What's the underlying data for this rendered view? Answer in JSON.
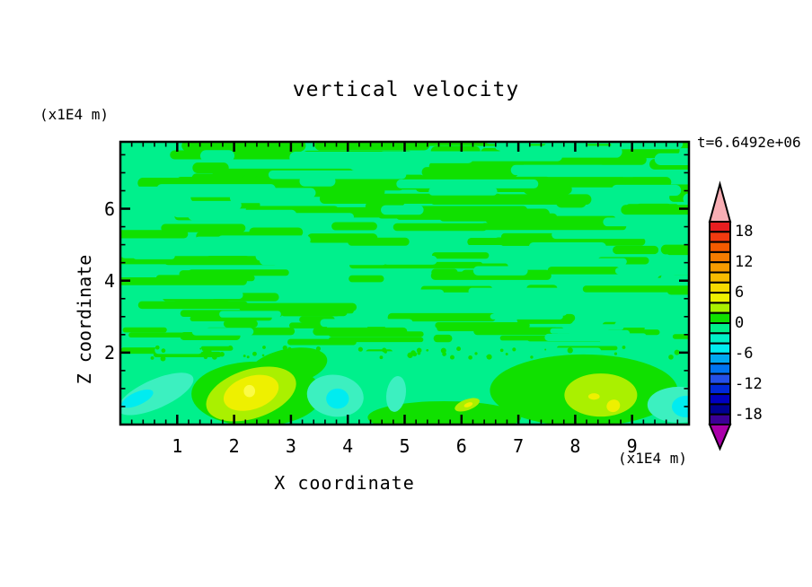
{
  "chart_data": {
    "type": "contour",
    "title": "vertical velocity",
    "time_annotation": "t=6.6492e+06",
    "xlabel": "X coordinate",
    "ylabel": "Z coordinate",
    "x_unit": "(x1E4 m)",
    "y_unit": "(x1E4 m)",
    "xlim": [
      0,
      10.0
    ],
    "ylim": [
      0,
      7.86
    ],
    "x_major_ticks": [
      1,
      2,
      3,
      4,
      5,
      6,
      7,
      8,
      9
    ],
    "x_major_tick_labels": [
      "1",
      "2",
      "3",
      "4",
      "5",
      "6",
      "7",
      "8",
      "9"
    ],
    "x_minor_step": 0.2,
    "y_major_ticks": [
      2,
      4,
      6
    ],
    "y_major_tick_labels": [
      "2",
      "4",
      "6"
    ],
    "y_minor_step": 0.5,
    "grid": false,
    "colorbar": {
      "orientation": "vertical",
      "position": "right",
      "level_min": -20,
      "level_max": 20,
      "level_step": 2,
      "tick_labels": [
        "18",
        "12",
        "6",
        "0",
        "-6",
        "-12",
        "-18"
      ],
      "tick_values": [
        18,
        12,
        6,
        0,
        -6,
        -12,
        -18
      ],
      "colors_top_to_bottom": [
        "#e81e20",
        "#f23a10",
        "#f45a00",
        "#f57c00",
        "#f79c00",
        "#f8bc00",
        "#f5da00",
        "#eef000",
        "#aaf000",
        "#10e000",
        "#00f08c",
        "#00f0c8",
        "#00ecf0",
        "#00a8f0",
        "#0074f0",
        "#2450e8",
        "#0028d8",
        "#0000c0",
        "#000092",
        "#3c0096"
      ],
      "over_arrow_color": "#f8aeb4",
      "under_arrow_color": "#aa00aa"
    },
    "field": {
      "background_color": "#00f08c",
      "background_value_range": [
        -2,
        0
      ],
      "striation_color": "#10e000",
      "striation_value_range": [
        0,
        2
      ],
      "striation_band_z": [
        2.02,
        7.8
      ],
      "striation_seed": 137,
      "striation_count": 150,
      "striation_overlay_count": 75,
      "speckle_z_range": [
        1.82,
        2.16
      ],
      "speckle_count": 55,
      "features": [
        {
          "name": "green-region-left",
          "color": "#10e000",
          "cx": 2.4,
          "cy": 0.85,
          "rx": 1.15,
          "ry": 0.9,
          "rot": 0
        },
        {
          "name": "green-region-left-upper",
          "color": "#10e000",
          "cx": 2.95,
          "cy": 1.6,
          "rx": 0.7,
          "ry": 0.5,
          "rot": -12
        },
        {
          "name": "green-region-bottom-mid",
          "color": "#10e000",
          "cx": 5.7,
          "cy": 0.2,
          "rx": 1.35,
          "ry": 0.45,
          "rot": 0
        },
        {
          "name": "green-region-right",
          "color": "#10e000",
          "cx": 8.15,
          "cy": 0.95,
          "rx": 1.65,
          "ry": 1.0,
          "rot": 0
        },
        {
          "name": "turquoise-patch-left",
          "color": "#3cf0c0",
          "cx": 0.62,
          "cy": 0.85,
          "rx": 0.72,
          "ry": 0.4,
          "rot": -24
        },
        {
          "name": "cyan-patch-left",
          "color": "#00ecf0",
          "cx": 0.3,
          "cy": 0.72,
          "rx": 0.3,
          "ry": 0.18,
          "rot": -24
        },
        {
          "name": "turquoise-patch-mid",
          "color": "#3cf0c0",
          "cx": 3.78,
          "cy": 0.8,
          "rx": 0.5,
          "ry": 0.58,
          "rot": 8
        },
        {
          "name": "cyan-patch-mid",
          "color": "#00ecf0",
          "cx": 3.82,
          "cy": 0.72,
          "rx": 0.2,
          "ry": 0.28,
          "rot": 0
        },
        {
          "name": "turquoise-sliver-mid",
          "color": "#3cf0c0",
          "cx": 4.85,
          "cy": 0.85,
          "rx": 0.17,
          "ry": 0.5,
          "rot": 8
        },
        {
          "name": "updraft-left-chartreuse",
          "color": "#aaf000",
          "cx": 2.3,
          "cy": 0.85,
          "rx": 0.82,
          "ry": 0.68,
          "rot": -18
        },
        {
          "name": "updraft-left-yellow",
          "color": "#eef000",
          "cx": 2.3,
          "cy": 0.88,
          "rx": 0.5,
          "ry": 0.46,
          "rot": -18
        },
        {
          "name": "updraft-left-core",
          "color": "#fbfb46",
          "cx": 2.27,
          "cy": 0.93,
          "rx": 0.1,
          "ry": 0.17,
          "rot": 0
        },
        {
          "name": "updraft-mid-chartreuse",
          "color": "#aaf000",
          "cx": 6.1,
          "cy": 0.55,
          "rx": 0.23,
          "ry": 0.15,
          "rot": -20
        },
        {
          "name": "updraft-mid-yellow",
          "color": "#eef000",
          "cx": 6.12,
          "cy": 0.55,
          "rx": 0.08,
          "ry": 0.06,
          "rot": -20
        },
        {
          "name": "updraft-right-chartreuse",
          "color": "#aaf000",
          "cx": 8.45,
          "cy": 0.82,
          "rx": 0.64,
          "ry": 0.6,
          "rot": 0
        },
        {
          "name": "updraft-right-yellow-1",
          "color": "#eef000",
          "cx": 8.33,
          "cy": 0.78,
          "rx": 0.1,
          "ry": 0.09,
          "rot": 0
        },
        {
          "name": "updraft-right-yellow-2",
          "color": "#eef000",
          "cx": 8.67,
          "cy": 0.52,
          "rx": 0.12,
          "ry": 0.17,
          "rot": -25
        },
        {
          "name": "turquoise-patch-right-corner",
          "color": "#3cf0c0",
          "cx": 9.82,
          "cy": 0.55,
          "rx": 0.55,
          "ry": 0.5,
          "rot": 0
        },
        {
          "name": "cyan-patch-right-corner",
          "color": "#00ecf0",
          "cx": 9.95,
          "cy": 0.5,
          "rx": 0.25,
          "ry": 0.3,
          "rot": 0
        }
      ]
    }
  }
}
